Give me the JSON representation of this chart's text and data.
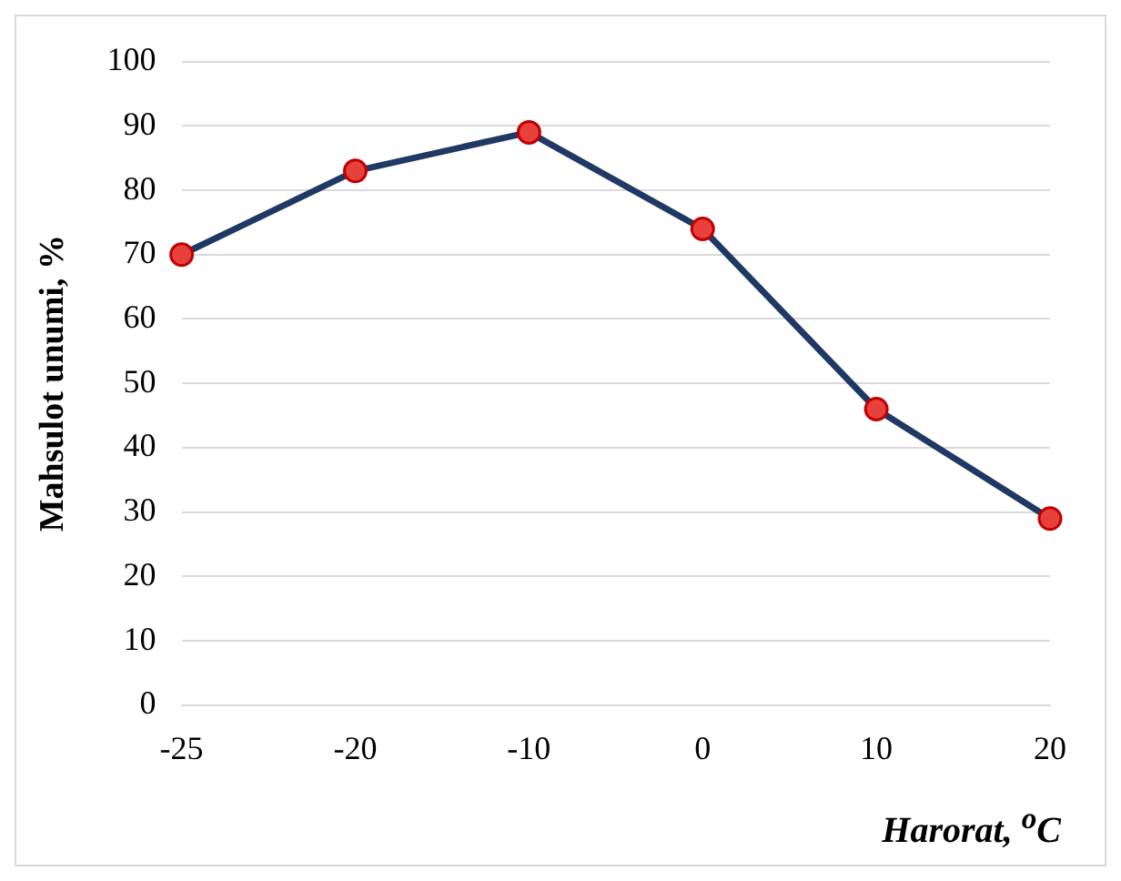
{
  "chart_data": {
    "type": "line",
    "xlabel": "Harorat, $^{o}$C",
    "ylabel": "Mahsulot unumi, %",
    "categories": [
      "-25",
      "-20",
      "-10",
      "0",
      "10",
      "20"
    ],
    "series": [
      {
        "color": "#1f3864",
        "colors": [
          "#e8403a",
          "#e8403a",
          "#e8403a",
          "#e8403a",
          "#e8403a",
          "#e8403a"
        ],
        "values": [
          70,
          83,
          89,
          74,
          46,
          29
        ]
      }
    ],
    "ylim": [
      0,
      100
    ],
    "yticks": [
      0,
      10,
      20,
      30,
      40,
      50,
      60,
      70,
      80,
      90,
      100
    ],
    "grid": "y",
    "legend": false,
    "marker": "circle",
    "line_style": "solid"
  }
}
